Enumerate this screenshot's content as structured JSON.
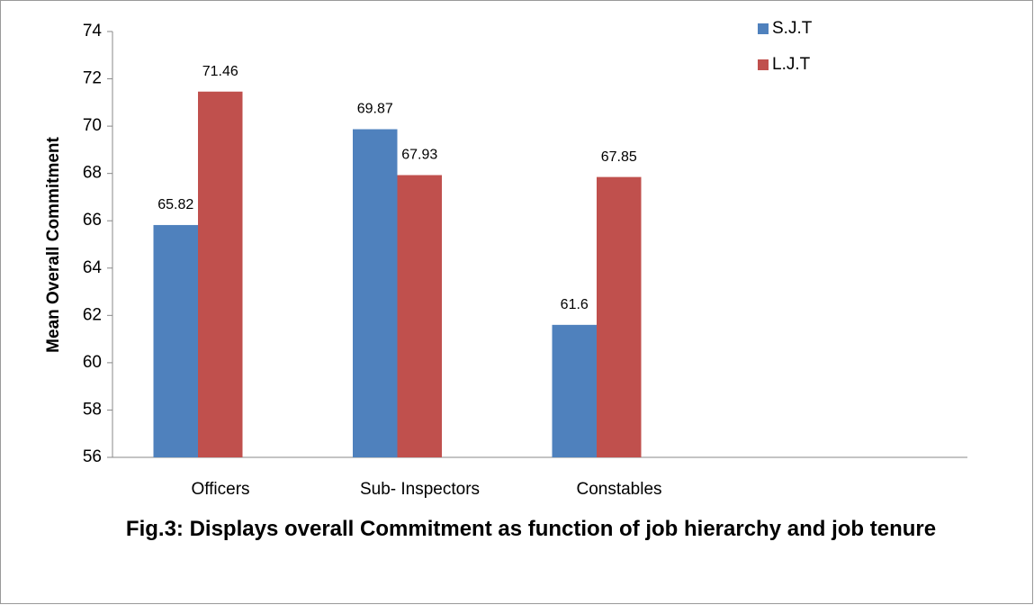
{
  "chart_data": {
    "type": "bar",
    "title": "Fig.3: Displays overall Commitment as function of job hierarchy and job tenure",
    "y_label": "Mean Overall Commitment",
    "categories": [
      "Officers",
      "Sub- Inspectors",
      "Constables"
    ],
    "series": [
      {
        "name": "S.J.T",
        "color": "#4f81bd",
        "values": [
          65.82,
          69.87,
          61.6
        ]
      },
      {
        "name": "L.J.T",
        "color": "#c0504d",
        "values": [
          71.46,
          67.93,
          67.85
        ]
      }
    ],
    "ylim": [
      56,
      74
    ],
    "yticks": [
      56,
      58,
      60,
      62,
      64,
      66,
      68,
      70,
      72,
      74
    ],
    "grid": false,
    "legend": "top-right"
  }
}
